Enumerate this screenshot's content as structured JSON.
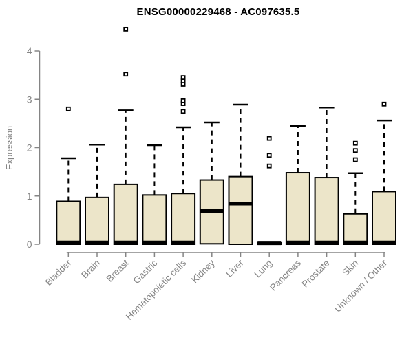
{
  "chart_data": {
    "type": "boxplot",
    "title": "ENSG00000229468 - AC097635.5",
    "xlabel": "",
    "ylabel": "Expression",
    "ylim": [
      0,
      4.55
    ],
    "yticks": [
      0,
      1,
      2,
      3,
      4
    ],
    "grid": false,
    "legend": "none",
    "colors": {
      "box_fill": "#ECE5C9",
      "box_border": "#000000",
      "median": "#000000",
      "whisker": "#000000",
      "axis": "#858585",
      "tick_label": "#858585",
      "title": "#000000",
      "background": "#ffffff"
    },
    "categories": [
      "Bladder",
      "Brain",
      "Breast",
      "Gastric",
      "Hematopoietic cells",
      "Kidney",
      "Liver",
      "Lung",
      "Pancreas",
      "Prostate",
      "Skin",
      "Unknown / Other"
    ],
    "boxes": [
      {
        "label": "Bladder",
        "q1": 0.0,
        "median": 0.04,
        "q3": 0.89,
        "whisker_low": 0,
        "whisker_high": 1.78,
        "outliers": [
          2.8
        ]
      },
      {
        "label": "Brain",
        "q1": 0.0,
        "median": 0.04,
        "q3": 0.97,
        "whisker_low": 0,
        "whisker_high": 2.06,
        "outliers": []
      },
      {
        "label": "Breast",
        "q1": 0.0,
        "median": 0.04,
        "q3": 1.24,
        "whisker_low": 0,
        "whisker_high": 2.77,
        "outliers": [
          3.52,
          4.45
        ]
      },
      {
        "label": "Gastric",
        "q1": 0.0,
        "median": 0.04,
        "q3": 1.02,
        "whisker_low": 0,
        "whisker_high": 2.05,
        "outliers": []
      },
      {
        "label": "Hematopoietic cells",
        "q1": 0.0,
        "median": 0.04,
        "q3": 1.05,
        "whisker_low": 0,
        "whisker_high": 2.42,
        "outliers": [
          2.75,
          2.91,
          2.97,
          3.31,
          3.38,
          3.45
        ]
      },
      {
        "label": "Kidney",
        "q1": 0.01,
        "median": 0.69,
        "q3": 1.33,
        "whisker_low": 0,
        "whisker_high": 2.52,
        "outliers": []
      },
      {
        "label": "Liver",
        "q1": 0.0,
        "median": 0.84,
        "q3": 1.4,
        "whisker_low": 0,
        "whisker_high": 2.89,
        "outliers": []
      },
      {
        "label": "Lung",
        "q1": 0.0,
        "median": 0.02,
        "q3": 0.03,
        "whisker_low": 0,
        "whisker_high": 0.03,
        "outliers": [
          1.62,
          1.84,
          2.19
        ]
      },
      {
        "label": "Pancreas",
        "q1": 0.0,
        "median": 0.04,
        "q3": 1.48,
        "whisker_low": 0,
        "whisker_high": 2.45,
        "outliers": []
      },
      {
        "label": "Prostate",
        "q1": 0.0,
        "median": 0.04,
        "q3": 1.38,
        "whisker_low": 0,
        "whisker_high": 2.83,
        "outliers": []
      },
      {
        "label": "Skin",
        "q1": 0.0,
        "median": 0.04,
        "q3": 0.63,
        "whisker_low": 0,
        "whisker_high": 1.47,
        "outliers": [
          1.75,
          1.94,
          2.09
        ]
      },
      {
        "label": "Unknown / Other",
        "q1": 0.0,
        "median": 0.04,
        "q3": 1.09,
        "whisker_low": 0,
        "whisker_high": 2.56,
        "outliers": [
          2.9
        ]
      }
    ]
  }
}
